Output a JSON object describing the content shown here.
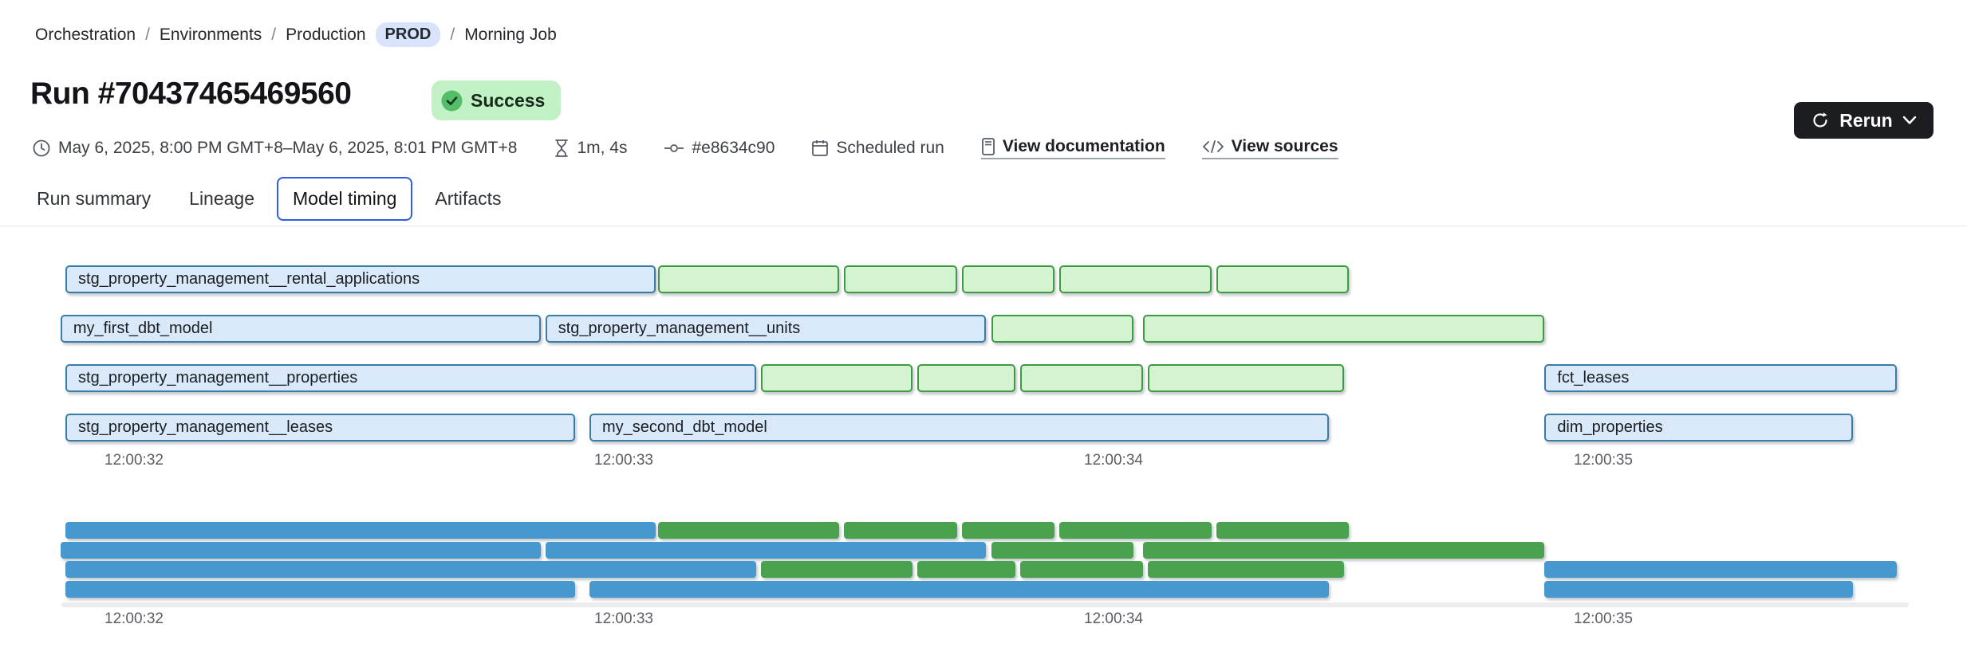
{
  "breadcrumb": {
    "separator": "/",
    "items": [
      "Orchestration",
      "Environments",
      "Production"
    ],
    "env_badge": "PROD",
    "current": "Morning Job"
  },
  "header": {
    "title": "Run #70437465469560",
    "status": "Success"
  },
  "meta": {
    "time_range": "May 6, 2025, 8:00 PM GMT+8–May 6, 2025, 8:01 PM GMT+8",
    "duration": "1m, 4s",
    "commit": "#e8634c90",
    "trigger": "Scheduled run",
    "doc_link": "View documentation",
    "sources_link": "View sources"
  },
  "actions": {
    "rerun_label": "Rerun"
  },
  "tabs": [
    {
      "label": "Run summary",
      "selected": false
    },
    {
      "label": "Lineage",
      "selected": false
    },
    {
      "label": "Model timing",
      "selected": true
    },
    {
      "label": "Artifacts",
      "selected": false
    }
  ],
  "chart_data": {
    "type": "bar",
    "subtype": "gantt-model-timing",
    "title": "Model timing",
    "unit": "seconds of 12:00 (wall-clock ticks shown)",
    "grid": false,
    "legend": false,
    "axis_ticks": [
      {
        "t": 32,
        "label": "12:00:32"
      },
      {
        "t": 33,
        "label": "12:00:33"
      },
      {
        "t": 34,
        "label": "12:00:34"
      },
      {
        "t": 35,
        "label": "12:00:35"
      }
    ],
    "domain": [
      31.85,
      35.62
    ],
    "colors": {
      "model_fill": "#d9e9f9",
      "model_border": "#3a7ca8",
      "test_fill": "#d3f3d1",
      "test_border": "#3f9a44",
      "minimap_model": "#4698cf",
      "minimap_test": "#4aa24e"
    },
    "rows": [
      {
        "segments": [
          {
            "label": "stg_property_management__rental_applications",
            "color": "blue",
            "start": 31.86,
            "end": 33.065
          },
          {
            "color": "green",
            "start": 33.07,
            "end": 33.44
          },
          {
            "color": "green",
            "start": 33.45,
            "end": 33.68
          },
          {
            "color": "green",
            "start": 33.69,
            "end": 33.88
          },
          {
            "color": "green",
            "start": 33.89,
            "end": 34.2
          },
          {
            "color": "green",
            "start": 34.21,
            "end": 34.48
          }
        ]
      },
      {
        "segments": [
          {
            "label": "my_first_dbt_model",
            "color": "blue",
            "start": 31.85,
            "end": 32.83
          },
          {
            "label": "stg_property_management__units",
            "color": "blue",
            "start": 32.84,
            "end": 33.74
          },
          {
            "color": "green",
            "start": 33.75,
            "end": 34.04
          },
          {
            "color": "green",
            "start": 34.06,
            "end": 34.88
          }
        ]
      },
      {
        "segments": [
          {
            "label": "stg_property_management__properties",
            "color": "blue",
            "start": 31.86,
            "end": 33.27
          },
          {
            "color": "green",
            "start": 33.28,
            "end": 33.59
          },
          {
            "color": "green",
            "start": 33.6,
            "end": 33.8
          },
          {
            "color": "green",
            "start": 33.81,
            "end": 34.06
          },
          {
            "color": "green",
            "start": 34.07,
            "end": 34.47
          },
          {
            "label": "fct_leases",
            "color": "blue",
            "start": 34.88,
            "end": 35.6
          }
        ]
      },
      {
        "segments": [
          {
            "label": "stg_property_management__leases",
            "color": "blue",
            "start": 31.86,
            "end": 32.9
          },
          {
            "label": "my_second_dbt_model",
            "color": "blue",
            "start": 32.93,
            "end": 34.44
          },
          {
            "label": "dim_properties",
            "color": "blue",
            "start": 34.88,
            "end": 35.51
          }
        ]
      }
    ]
  }
}
